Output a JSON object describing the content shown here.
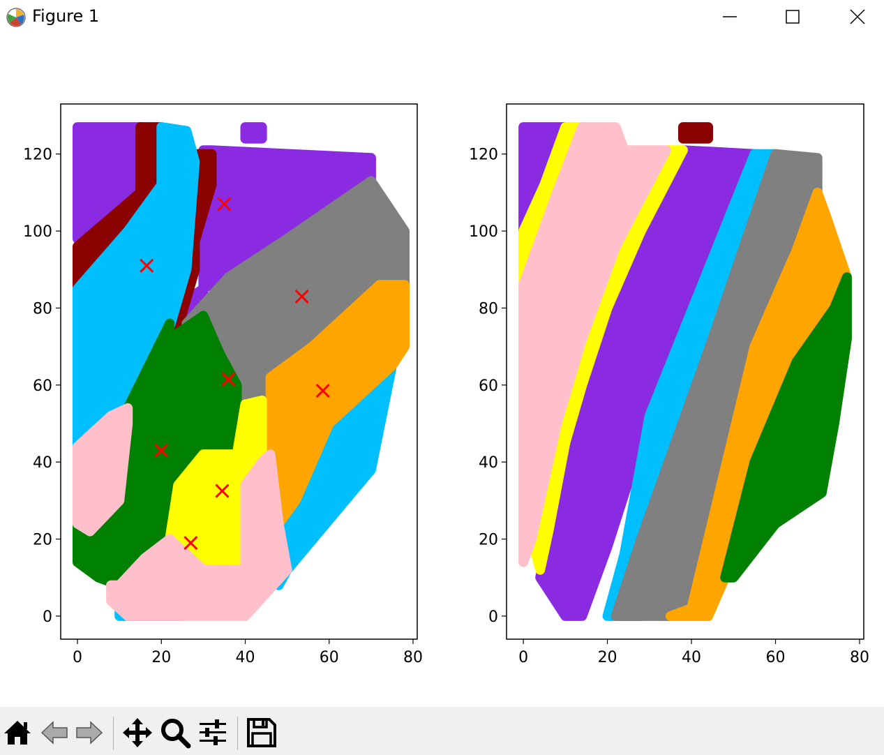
{
  "window": {
    "title": "Figure 1",
    "icon": "matplotlib-icon",
    "controls": [
      "minimize-icon",
      "maximize-icon",
      "close-icon"
    ]
  },
  "toolbar": {
    "buttons": [
      "home-icon",
      "back-arrow-icon",
      "forward-arrow-icon",
      "pan-icon",
      "zoom-icon",
      "configure-subplots-icon",
      "save-icon"
    ]
  },
  "chart_data": [
    {
      "type": "scatter",
      "title": "",
      "xlabel": "",
      "ylabel": "",
      "xlim": [
        -4,
        81
      ],
      "ylim": [
        -6,
        133
      ],
      "xticks": [
        "0",
        "20",
        "40",
        "60",
        "80"
      ],
      "yticks": [
        "0",
        "20",
        "40",
        "60",
        "80",
        "100",
        "120"
      ],
      "grid": false,
      "series": [
        {
          "color": "#8a2be2",
          "regions": [
            [
              [
                0,
                127
              ],
              [
                15,
                127
              ],
              [
                13,
                110
              ],
              [
                0,
                98
              ]
            ],
            [
              [
                32,
                121
              ],
              [
                70,
                119
              ],
              [
                70,
                113
              ],
              [
                45,
                95
              ],
              [
                30,
                85
              ],
              [
                23,
                80
              ],
              [
                23,
                72
              ],
              [
                30,
                78
              ],
              [
                30,
                121
              ]
            ],
            [
              [
                40,
                127
              ],
              [
                44,
                127
              ],
              [
                44,
                124
              ],
              [
                40,
                124
              ]
            ]
          ]
        },
        {
          "color": "#8b0000",
          "regions": [
            [
              [
                0,
                96
              ],
              [
                15,
                110
              ],
              [
                15,
                127
              ],
              [
                20,
                127
              ],
              [
                20,
                112
              ],
              [
                12,
                100
              ],
              [
                0,
                85
              ]
            ],
            [
              [
                28,
                120
              ],
              [
                32,
                120
              ],
              [
                32,
                112
              ],
              [
                26,
                90
              ],
              [
                22,
                75
              ],
              [
                16,
                62
              ],
              [
                10,
                52
              ],
              [
                16,
                52
              ],
              [
                22,
                65
              ],
              [
                24,
                75
              ],
              [
                28,
                90
              ]
            ]
          ]
        },
        {
          "color": "#00bfff",
          "regions": [
            [
              [
                0,
                85
              ],
              [
                12,
                100
              ],
              [
                20,
                112
              ],
              [
                20,
                127
              ],
              [
                26,
                126
              ],
              [
                28,
                118
              ],
              [
                26,
                90
              ],
              [
                22,
                75
              ],
              [
                16,
                60
              ],
              [
                10,
                52
              ],
              [
                4,
                44
              ],
              [
                0,
                44
              ]
            ],
            [
              [
                50,
                12
              ],
              [
                70,
                38
              ],
              [
                75,
                65
              ],
              [
                75,
                70
              ],
              [
                60,
                50
              ],
              [
                48,
                30
              ],
              [
                48,
                8
              ]
            ],
            [
              [
                10,
                2
              ],
              [
                20,
                4
              ],
              [
                25,
                0
              ],
              [
                10,
                0
              ]
            ]
          ]
        },
        {
          "color": "#808080",
          "regions": [
            [
              [
                70,
                113
              ],
              [
                78,
                100
              ],
              [
                78,
                86
              ],
              [
                72,
                86
              ],
              [
                56,
                70
              ],
              [
                44,
                56
              ],
              [
                36,
                56
              ],
              [
                27,
                68
              ],
              [
                26,
                76
              ],
              [
                36,
                88
              ],
              [
                50,
                98
              ]
            ]
          ]
        },
        {
          "color": "#ffa500",
          "regions": [
            [
              [
                46,
                62
              ],
              [
                56,
                70
              ],
              [
                72,
                86
              ],
              [
                78,
                86
              ],
              [
                78,
                70
              ],
              [
                75,
                65
              ],
              [
                60,
                50
              ],
              [
                52,
                30
              ],
              [
                48,
                24
              ],
              [
                46,
                42
              ],
              [
                46,
                56
              ]
            ]
          ]
        },
        {
          "color": "#008000",
          "regions": [
            [
              [
                0,
                24
              ],
              [
                3,
                22
              ],
              [
                10,
                30
              ],
              [
                8,
                48
              ],
              [
                12,
                54
              ],
              [
                22,
                76
              ],
              [
                22,
                72
              ],
              [
                30,
                78
              ],
              [
                34,
                68
              ],
              [
                38,
                60
              ],
              [
                38,
                42
              ],
              [
                30,
                40
              ],
              [
                24,
                34
              ],
              [
                22,
                20
              ],
              [
                16,
                15
              ],
              [
                10,
                8
              ],
              [
                5,
                10
              ],
              [
                0,
                14
              ]
            ]
          ]
        },
        {
          "color": "#ffff00",
          "regions": [
            [
              [
                22,
                20
              ],
              [
                24,
                34
              ],
              [
                30,
                42
              ],
              [
                38,
                42
              ],
              [
                40,
                55
              ],
              [
                44,
                56
              ],
              [
                44,
                40
              ],
              [
                40,
                34
              ],
              [
                40,
                12
              ],
              [
                30,
                12
              ],
              [
                24,
                16
              ]
            ]
          ]
        },
        {
          "color": "#ffc0cb",
          "regions": [
            [
              [
                0,
                24
              ],
              [
                0,
                44
              ],
              [
                8,
                52
              ],
              [
                12,
                54
              ],
              [
                12,
                50
              ],
              [
                10,
                30
              ],
              [
                3,
                22
              ]
            ],
            [
              [
                8,
                8
              ],
              [
                10,
                8
              ],
              [
                16,
                15
              ],
              [
                22,
                20
              ],
              [
                30,
                12
              ],
              [
                40,
                12
              ],
              [
                40,
                34
              ],
              [
                44,
                40
              ],
              [
                46,
                42
              ],
              [
                48,
                24
              ],
              [
                50,
                12
              ],
              [
                45,
                6
              ],
              [
                40,
                0
              ],
              [
                12,
                0
              ],
              [
                8,
                4
              ]
            ]
          ]
        }
      ],
      "markers": {
        "symbol": "x",
        "color": "#ff0000",
        "points": [
          [
            16.5,
            91
          ],
          [
            35,
            107
          ],
          [
            53.5,
            83
          ],
          [
            36,
            61.5
          ],
          [
            58.5,
            58.5
          ],
          [
            20,
            43
          ],
          [
            34.5,
            32.5
          ],
          [
            27,
            19
          ]
        ]
      }
    },
    {
      "type": "scatter",
      "title": "",
      "xlabel": "",
      "ylabel": "",
      "xlim": [
        -4,
        81
      ],
      "ylim": [
        -6,
        133
      ],
      "xticks": [
        "0",
        "20",
        "40",
        "60",
        "80"
      ],
      "yticks": [
        "0",
        "20",
        "40",
        "60",
        "80",
        "100",
        "120"
      ],
      "grid": false,
      "series": [
        {
          "color": "#8a2be2",
          "regions": [
            [
              [
                0,
                127
              ],
              [
                10,
                127
              ],
              [
                5,
                112
              ],
              [
                0,
                100
              ]
            ],
            [
              [
                38,
                121
              ],
              [
                55,
                120
              ],
              [
                30,
                52
              ],
              [
                20,
                18
              ],
              [
                14,
                0
              ],
              [
                10,
                0
              ],
              [
                4,
                10
              ],
              [
                6,
                22
              ],
              [
                10,
                45
              ],
              [
                14,
                60
              ],
              [
                20,
                80
              ],
              [
                28,
                100
              ]
            ]
          ]
        },
        {
          "color": "#8b0000",
          "regions": [
            [
              [
                38,
                127
              ],
              [
                44,
                127
              ],
              [
                44,
                124
              ],
              [
                38,
                124
              ]
            ]
          ]
        },
        {
          "color": "#ffff00",
          "regions": [
            [
              [
                0,
                100
              ],
              [
                5,
                112
              ],
              [
                10,
                127
              ],
              [
                14,
                127
              ],
              [
                8,
                110
              ],
              [
                0,
                86
              ]
            ],
            [
              [
                34,
                121
              ],
              [
                38,
                121
              ],
              [
                28,
                100
              ],
              [
                20,
                80
              ],
              [
                14,
                60
              ],
              [
                10,
                45
              ],
              [
                6,
                22
              ],
              [
                4,
                12
              ],
              [
                2,
                20
              ],
              [
                4,
                30
              ],
              [
                8,
                50
              ],
              [
                14,
                72
              ],
              [
                22,
                96
              ]
            ]
          ]
        },
        {
          "color": "#ffc0cb",
          "regions": [
            [
              [
                0,
                86
              ],
              [
                8,
                110
              ],
              [
                14,
                127
              ],
              [
                22,
                127
              ],
              [
                24,
                121
              ],
              [
                34,
                121
              ],
              [
                22,
                96
              ],
              [
                14,
                72
              ],
              [
                8,
                50
              ],
              [
                4,
                30
              ],
              [
                2,
                20
              ],
              [
                0,
                14
              ]
            ]
          ]
        },
        {
          "color": "#00bfff",
          "regions": [
            [
              [
                55,
                120
              ],
              [
                60,
                120
              ],
              [
                45,
                72
              ],
              [
                28,
                0
              ],
              [
                20,
                0
              ],
              [
                24,
                16
              ],
              [
                30,
                52
              ]
            ]
          ]
        },
        {
          "color": "#808080",
          "regions": [
            [
              [
                60,
                120
              ],
              [
                70,
                119
              ],
              [
                70,
                110
              ],
              [
                65,
                95
              ],
              [
                55,
                70
              ],
              [
                40,
                2
              ],
              [
                35,
                0
              ],
              [
                22,
                0
              ],
              [
                28,
                20
              ],
              [
                45,
                72
              ]
            ]
          ]
        },
        {
          "color": "#ffa500",
          "regions": [
            [
              [
                70,
                110
              ],
              [
                72,
                104
              ],
              [
                77,
                88
              ],
              [
                74,
                80
              ],
              [
                65,
                66
              ],
              [
                55,
                40
              ],
              [
                48,
                10
              ],
              [
                44,
                0
              ],
              [
                35,
                0
              ],
              [
                40,
                2
              ],
              [
                55,
                70
              ],
              [
                65,
                95
              ]
            ]
          ]
        },
        {
          "color": "#008000",
          "regions": [
            [
              [
                77,
                88
              ],
              [
                77,
                72
              ],
              [
                74,
                50
              ],
              [
                71,
                32
              ],
              [
                60,
                24
              ],
              [
                50,
                10
              ],
              [
                48,
                10
              ],
              [
                55,
                40
              ],
              [
                65,
                66
              ],
              [
                74,
                80
              ]
            ]
          ]
        }
      ],
      "markers": null
    }
  ]
}
